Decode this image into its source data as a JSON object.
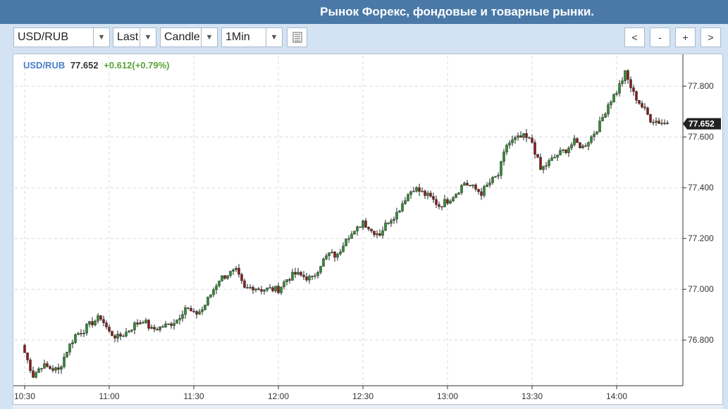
{
  "header": {
    "title": "Рынок Форекс, фондовые и товарные рынки."
  },
  "toolbar": {
    "symbol": "USD/RUB",
    "price_type": "Last",
    "chart_style": "Candle",
    "interval": "1Min",
    "settings_icon": "list-icon",
    "nav": {
      "back": "<",
      "zoom_out": "-",
      "zoom_in": "+",
      "forward": ">"
    }
  },
  "quote": {
    "symbol": "USD/RUB",
    "price": "77.652",
    "change": "+0.612(+0.79%)"
  },
  "colors": {
    "up": "#2f8f2f",
    "down": "#8b1a1a",
    "grid": "#d8d8d8",
    "symbol": "#4a7ec8",
    "change": "#5aa33a"
  },
  "chart_data": {
    "type": "candlestick",
    "interval": "1Min",
    "x_tick_labels": [
      "10:30",
      "11:00",
      "11:30",
      "12:00",
      "12:30",
      "13:00",
      "13:30",
      "14:00"
    ],
    "y_tick_labels": [
      "77.800",
      "77.600",
      "77.400",
      "77.200",
      "77.000",
      "76.800"
    ],
    "ylim": [
      76.62,
      77.92
    ],
    "last_price_label": "77.652",
    "grid": true,
    "close_path": [
      [
        "10:30",
        76.75
      ],
      [
        "10:33",
        76.66
      ],
      [
        "10:36",
        76.7
      ],
      [
        "10:39",
        76.69
      ],
      [
        "10:42",
        76.68
      ],
      [
        "10:45",
        76.76
      ],
      [
        "10:48",
        76.82
      ],
      [
        "10:51",
        76.84
      ],
      [
        "10:54",
        76.87
      ],
      [
        "10:57",
        76.89
      ],
      [
        "11:00",
        76.83
      ],
      [
        "11:03",
        76.81
      ],
      [
        "11:06",
        76.83
      ],
      [
        "11:09",
        76.86
      ],
      [
        "11:12",
        76.88
      ],
      [
        "11:15",
        76.84
      ],
      [
        "11:18",
        76.85
      ],
      [
        "11:21",
        76.86
      ],
      [
        "11:24",
        76.88
      ],
      [
        "11:27",
        76.93
      ],
      [
        "11:30",
        76.9
      ],
      [
        "11:33",
        76.92
      ],
      [
        "11:36",
        76.98
      ],
      [
        "11:39",
        77.04
      ],
      [
        "11:42",
        77.06
      ],
      [
        "11:45",
        77.07
      ],
      [
        "11:48",
        77.0
      ],
      [
        "11:51",
        77.01
      ],
      [
        "11:54",
        77.0
      ],
      [
        "11:57",
        77.0
      ],
      [
        "12:00",
        77.0
      ],
      [
        "12:03",
        77.04
      ],
      [
        "12:06",
        77.06
      ],
      [
        "12:09",
        77.05
      ],
      [
        "12:12",
        77.04
      ],
      [
        "12:15",
        77.1
      ],
      [
        "12:18",
        77.14
      ],
      [
        "12:21",
        77.13
      ],
      [
        "12:24",
        77.21
      ],
      [
        "12:27",
        77.22
      ],
      [
        "12:30",
        77.27
      ],
      [
        "12:33",
        77.23
      ],
      [
        "12:36",
        77.22
      ],
      [
        "12:39",
        77.27
      ],
      [
        "12:42",
        77.3
      ],
      [
        "12:45",
        77.36
      ],
      [
        "12:48",
        77.4
      ],
      [
        "12:51",
        77.38
      ],
      [
        "12:54",
        77.36
      ],
      [
        "12:57",
        77.33
      ],
      [
        "13:00",
        77.35
      ],
      [
        "13:03",
        77.38
      ],
      [
        "13:06",
        77.42
      ],
      [
        "13:09",
        77.4
      ],
      [
        "13:12",
        77.38
      ],
      [
        "13:15",
        77.42
      ],
      [
        "13:18",
        77.45
      ],
      [
        "13:21",
        77.57
      ],
      [
        "13:24",
        77.59
      ],
      [
        "13:27",
        77.6
      ],
      [
        "13:30",
        77.58
      ],
      [
        "13:33",
        77.47
      ],
      [
        "13:36",
        77.5
      ],
      [
        "13:39",
        77.53
      ],
      [
        "13:42",
        77.55
      ],
      [
        "13:45",
        77.58
      ],
      [
        "13:48",
        77.56
      ],
      [
        "13:51",
        77.6
      ],
      [
        "13:54",
        77.65
      ],
      [
        "13:57",
        77.73
      ],
      [
        "14:00",
        77.78
      ],
      [
        "14:03",
        77.85
      ],
      [
        "14:06",
        77.77
      ],
      [
        "14:09",
        77.72
      ],
      [
        "14:12",
        77.67
      ],
      [
        "14:15",
        77.66
      ],
      [
        "14:18",
        77.652
      ]
    ]
  }
}
